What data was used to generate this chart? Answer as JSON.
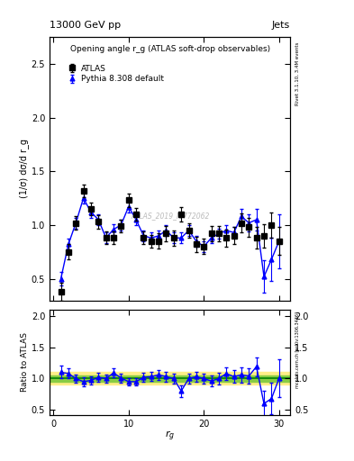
{
  "title_left": "13000 GeV pp",
  "title_right": "Jets",
  "ylabel_main": "(1/σ) dσ/d r_g",
  "ylabel_ratio": "Ratio to ATLAS",
  "xlabel": "r_g",
  "right_label_main": "Rivet 3.1.10, 3.4M events",
  "right_label_arxiv": "mcplots.cern.ch [arXiv:1306.3436]",
  "watermark": "ATLAS_2019_I1772062",
  "plot_title": "Opening angle r_g (ATLAS soft-drop observables)",
  "ylim_main": [
    0.3,
    2.75
  ],
  "ylim_ratio": [
    0.42,
    2.1
  ],
  "yticks_main": [
    0.5,
    1.0,
    1.5,
    2.0,
    2.5
  ],
  "yticks_ratio": [
    0.5,
    1.0,
    1.5,
    2.0
  ],
  "xlim": [
    -0.5,
    31.5
  ],
  "xticks": [
    0,
    10,
    20,
    30
  ],
  "atlas_x": [
    1,
    2,
    3,
    4,
    5,
    6,
    7,
    8,
    9,
    10,
    11,
    12,
    13,
    14,
    15,
    16,
    17,
    18,
    19,
    20,
    21,
    22,
    23,
    24,
    25,
    26,
    27,
    28,
    29,
    30
  ],
  "atlas_y": [
    0.38,
    0.75,
    1.02,
    1.32,
    1.15,
    1.03,
    0.88,
    0.88,
    0.99,
    1.23,
    1.1,
    0.88,
    0.85,
    0.85,
    0.92,
    0.88,
    1.1,
    0.95,
    0.82,
    0.8,
    0.92,
    0.92,
    0.88,
    0.9,
    1.02,
    0.98,
    0.88,
    0.9,
    1.0,
    0.85
  ],
  "atlas_yerr": [
    0.08,
    0.07,
    0.06,
    0.06,
    0.06,
    0.06,
    0.06,
    0.06,
    0.06,
    0.06,
    0.06,
    0.06,
    0.06,
    0.07,
    0.07,
    0.07,
    0.07,
    0.07,
    0.07,
    0.07,
    0.07,
    0.07,
    0.08,
    0.08,
    0.09,
    0.09,
    0.1,
    0.11,
    0.12,
    0.13
  ],
  "pythia_x": [
    1,
    2,
    3,
    4,
    5,
    6,
    7,
    8,
    9,
    10,
    11,
    12,
    13,
    14,
    15,
    16,
    17,
    18,
    19,
    20,
    21,
    22,
    23,
    24,
    25,
    26,
    27,
    28,
    29,
    30
  ],
  "pythia_y": [
    0.5,
    0.82,
    1.02,
    1.25,
    1.12,
    1.05,
    0.88,
    0.96,
    1.0,
    1.17,
    1.05,
    0.9,
    0.88,
    0.9,
    0.95,
    0.88,
    0.88,
    0.95,
    0.85,
    0.8,
    0.88,
    0.92,
    0.95,
    0.93,
    1.08,
    1.02,
    1.05,
    0.52,
    0.68,
    0.85
  ],
  "pythia_yerr": [
    0.06,
    0.05,
    0.05,
    0.05,
    0.05,
    0.05,
    0.05,
    0.05,
    0.05,
    0.05,
    0.05,
    0.05,
    0.05,
    0.05,
    0.05,
    0.05,
    0.05,
    0.05,
    0.05,
    0.05,
    0.05,
    0.05,
    0.05,
    0.05,
    0.07,
    0.08,
    0.1,
    0.15,
    0.2,
    0.25
  ],
  "ratio_x": [
    1,
    2,
    3,
    4,
    5,
    6,
    7,
    8,
    9,
    10,
    11,
    12,
    13,
    14,
    15,
    16,
    17,
    18,
    19,
    20,
    21,
    22,
    23,
    24,
    25,
    26,
    27,
    28,
    29,
    30
  ],
  "ratio_y": [
    1.1,
    1.08,
    1.0,
    0.95,
    0.97,
    1.02,
    1.0,
    1.09,
    1.01,
    0.95,
    0.95,
    1.02,
    1.03,
    1.06,
    1.03,
    1.0,
    0.8,
    1.0,
    1.03,
    1.0,
    0.96,
    1.0,
    1.08,
    1.03,
    1.06,
    1.04,
    1.19,
    0.6,
    0.68,
    1.0
  ],
  "ratio_yerr": [
    0.1,
    0.08,
    0.07,
    0.07,
    0.07,
    0.07,
    0.07,
    0.07,
    0.07,
    0.06,
    0.06,
    0.07,
    0.07,
    0.08,
    0.08,
    0.08,
    0.09,
    0.08,
    0.08,
    0.08,
    0.09,
    0.09,
    0.1,
    0.1,
    0.12,
    0.12,
    0.15,
    0.2,
    0.25,
    0.3
  ],
  "green_band": 0.05,
  "yellow_band": 0.1,
  "atlas_color": "black",
  "pythia_color": "blue",
  "atlas_marker": "s",
  "pythia_marker": "^",
  "background_color": "white",
  "atlas_label": "ATLAS",
  "pythia_label": "Pythia 8.308 default"
}
